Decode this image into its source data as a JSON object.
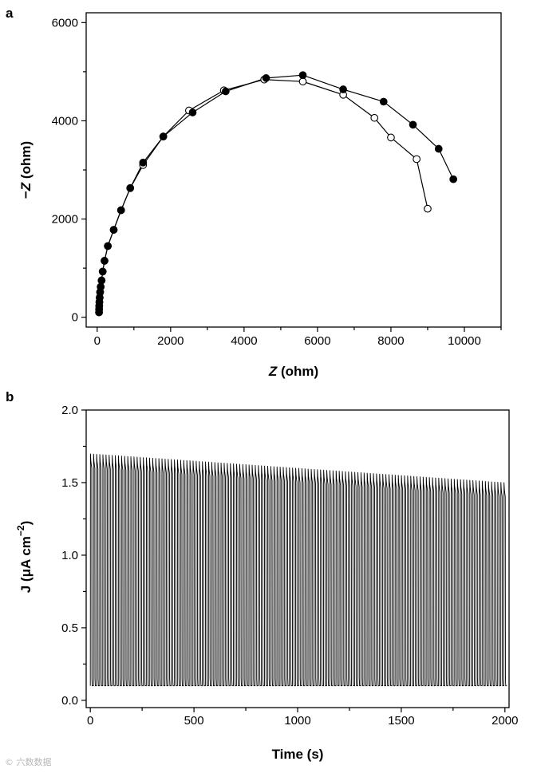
{
  "chart_data": [
    {
      "panel": "a",
      "type": "scatter",
      "xlabel": {
        "italic": "Z",
        "rest": " (ohm)"
      },
      "ylabel": {
        "prefix": "−",
        "italic": "Z",
        "rest": " (ohm)"
      },
      "xlim": [
        -300,
        11000
      ],
      "ylim": [
        -200,
        6200
      ],
      "xticks": [
        0,
        2000,
        4000,
        6000,
        8000,
        10000
      ],
      "yticks": [
        0,
        2000,
        4000,
        6000
      ],
      "series": [
        {
          "name": "filled",
          "marker": "filled-circle",
          "x": [
            50,
            52,
            55,
            60,
            68,
            80,
            95,
            120,
            150,
            200,
            290,
            450,
            650,
            900,
            1250,
            1800,
            2600,
            3500,
            4600,
            5600,
            6700,
            7800,
            8600,
            9300,
            9700
          ],
          "y": [
            100,
            160,
            230,
            310,
            400,
            510,
            620,
            750,
            930,
            1150,
            1450,
            1780,
            2180,
            2630,
            3150,
            3680,
            4170,
            4600,
            4870,
            4930,
            4640,
            4390,
            3920,
            3430,
            2810
          ]
        },
        {
          "name": "open",
          "marker": "open-circle",
          "x": [
            50,
            52,
            55,
            60,
            68,
            80,
            95,
            120,
            150,
            200,
            290,
            450,
            650,
            900,
            1250,
            1800,
            2500,
            3450,
            4550,
            5600,
            6700,
            7550,
            8000,
            8700,
            9000
          ],
          "y": [
            100,
            160,
            230,
            310,
            400,
            510,
            620,
            750,
            930,
            1150,
            1450,
            1780,
            2180,
            2630,
            3100,
            3680,
            4210,
            4620,
            4840,
            4800,
            4530,
            4060,
            3660,
            3220,
            2210
          ]
        }
      ]
    },
    {
      "panel": "b",
      "type": "line",
      "xlabel": "Time (s)",
      "ylabel": {
        "main": "J (μA cm",
        "sup": "−2",
        "close": ")"
      },
      "xlim": [
        -20,
        2020
      ],
      "ylim": [
        -0.05,
        2.0
      ],
      "xticks": [
        0,
        500,
        1000,
        1500,
        2000
      ],
      "yticks": [
        "0.0",
        "0.5",
        "1.0",
        "1.5",
        "2.0"
      ],
      "series": [
        {
          "name": "photocurrent",
          "description_values": {
            "period_s": 15,
            "t_start": 0,
            "t_end": 2010,
            "baseline": 0.1,
            "peak_start": 1.7,
            "peak_end": 1.5,
            "plateau_start": 1.6,
            "plateau_end": 1.4
          }
        }
      ]
    }
  ],
  "watermark": "© 六数数据"
}
